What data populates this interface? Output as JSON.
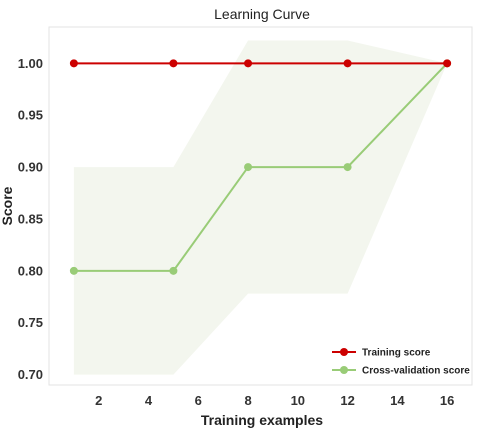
{
  "chart_data": {
    "type": "line",
    "title": "Learning Curve",
    "xlabel": "Training examples",
    "ylabel": "Score",
    "xlim": [
      0,
      17.0
    ],
    "ylim": [
      0.69,
      1.035
    ],
    "xticks": [
      2,
      4,
      6,
      8,
      10,
      12,
      14,
      16
    ],
    "xtick_labels": [
      "2",
      "4",
      "6",
      "8",
      "10",
      "12",
      "14",
      "16"
    ],
    "yticks": [
      0.7,
      0.75,
      0.8,
      0.85,
      0.9,
      0.95,
      1.0
    ],
    "ytick_labels": [
      "0.70",
      "0.75",
      "0.80",
      "0.85",
      "0.90",
      "0.95",
      "1.00"
    ],
    "x": [
      1,
      5,
      8,
      12,
      16
    ],
    "series": [
      {
        "name": "Training score",
        "color": "#cc0000",
        "values": [
          1.0,
          1.0,
          1.0,
          1.0,
          1.0
        ],
        "band_lower": [
          1.0,
          1.0,
          1.0,
          1.0,
          1.0
        ],
        "band_upper": [
          1.0,
          1.0,
          1.0,
          1.0,
          1.0
        ]
      },
      {
        "name": "Cross-validation score",
        "color": "#99cc77",
        "values": [
          0.8,
          0.8,
          0.9,
          0.9,
          1.0
        ],
        "band_lower": [
          0.7,
          0.7,
          0.778,
          0.778,
          1.0
        ],
        "band_upper": [
          0.9,
          0.9,
          1.022,
          1.022,
          1.0
        ],
        "band_color": "#f3f6ee"
      }
    ],
    "grid": false,
    "legend_position": "lower-right"
  }
}
